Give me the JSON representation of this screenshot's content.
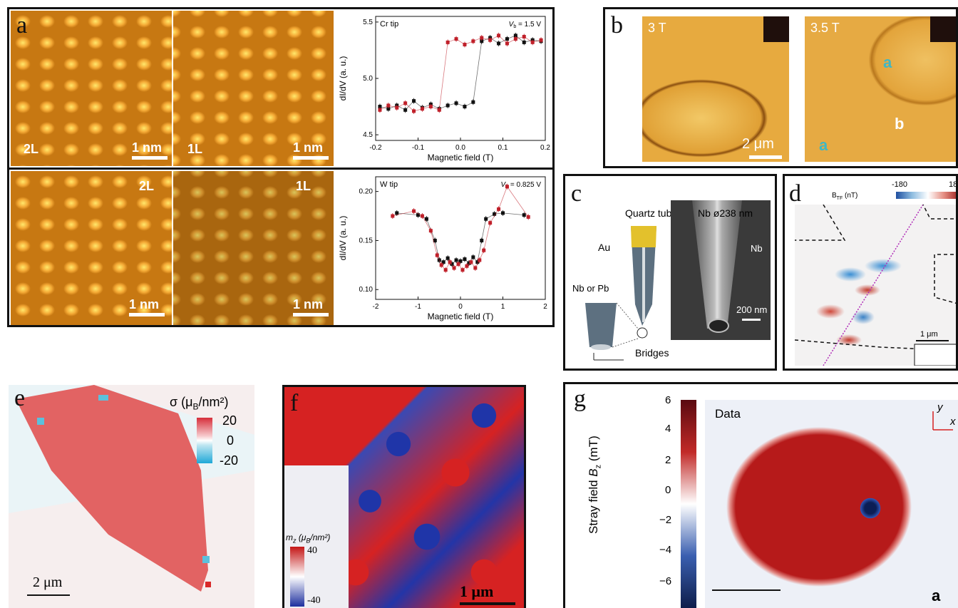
{
  "panels": {
    "a": {
      "label": "a",
      "top_left": {
        "layer": "2L",
        "scale": "1 nm"
      },
      "top_right": {
        "layer": "1L",
        "scale": "1 nm"
      },
      "bottom_left": {
        "layer": "2L",
        "scale": "1 nm"
      },
      "bottom_right": {
        "layer": "1L",
        "scale": "1 nm"
      }
    },
    "b": {
      "label": "b",
      "left_field": "3 T",
      "right_field": "3.5 T",
      "scale": "2 μm",
      "region_a": "a",
      "region_b": "b"
    },
    "c": {
      "label": "c",
      "quartz": "Quartz tube",
      "au": "Au",
      "nb_pb": "Nb or Pb",
      "bridges": "Bridges",
      "nb_dia": "Nb ø238 nm",
      "nb": "Nb",
      "scale": "200 nm"
    },
    "d": {
      "label": "d",
      "cbar_label": "B",
      "cbar_sub": "TF",
      "cbar_unit": "(nT)",
      "cbar_min": "-180",
      "cbar_max": "18",
      "scale": "1 μm"
    },
    "e": {
      "label": "e",
      "cbar_title": "σ (μ",
      "cbar_title_b": "B",
      "cbar_title_c": "/nm²)",
      "ticks": [
        "20",
        "0",
        "-20"
      ],
      "scale": "2 μm"
    },
    "f": {
      "label": "f",
      "cbar_title": "m",
      "cbar_sub": "z",
      "cbar_unit": " (μ",
      "cbar_unit_b": "B",
      "cbar_unit_c": "/nm²)",
      "cbar_max": "40",
      "cbar_min": "-40",
      "scale": "1 μm"
    },
    "g": {
      "label": "g",
      "ylabel": "Stray field ",
      "ylabel_b": "B",
      "ylabel_c": "z",
      "ylabel_d": " (mT)",
      "ticks": [
        "6",
        "4",
        "2",
        "0",
        "−2",
        "−4",
        "−6"
      ],
      "data_label": "Data",
      "corner": "a",
      "axis_y": "y",
      "axis_x": "x"
    }
  },
  "chart_data": [
    {
      "type": "scatter",
      "title": "Cr tip",
      "annotation": "V",
      "annotation_sub": "b",
      "annotation_val": " = 1.5 V",
      "xlabel": "Magnetic field (T)",
      "ylabel": "dI/dV (a. u.)",
      "xlim": [
        -0.2,
        0.2
      ],
      "ylim": [
        4.45,
        5.55
      ],
      "xticks": [
        "-0.2",
        "-0.1",
        "0.0",
        "0.1",
        "0.2"
      ],
      "yticks": [
        "4.5",
        "5.0",
        "5.5"
      ],
      "series": [
        {
          "color": "#111111",
          "x": [
            -0.19,
            -0.17,
            -0.15,
            -0.13,
            -0.11,
            -0.09,
            -0.07,
            -0.05,
            -0.03,
            -0.01,
            0.01,
            0.03,
            0.05,
            0.07,
            0.09,
            0.11,
            0.13,
            0.15,
            0.17,
            0.19
          ],
          "y": [
            4.75,
            4.73,
            4.76,
            4.72,
            4.8,
            4.74,
            4.77,
            4.73,
            4.76,
            4.78,
            4.75,
            4.79,
            5.33,
            5.36,
            5.31,
            5.35,
            5.38,
            5.32,
            5.34,
            5.33
          ]
        },
        {
          "color": "#c0202a",
          "x": [
            -0.19,
            -0.17,
            -0.15,
            -0.13,
            -0.11,
            -0.09,
            -0.07,
            -0.05,
            -0.03,
            -0.01,
            0.01,
            0.03,
            0.05,
            0.07,
            0.09,
            0.11,
            0.13,
            0.15,
            0.17,
            0.19
          ],
          "y": [
            4.72,
            4.76,
            4.74,
            4.78,
            4.71,
            4.73,
            4.75,
            4.72,
            5.32,
            5.35,
            5.3,
            5.33,
            5.36,
            5.34,
            5.38,
            5.31,
            5.35,
            5.37,
            5.32,
            5.34
          ]
        }
      ]
    },
    {
      "type": "scatter",
      "title": "W tip",
      "annotation": "V",
      "annotation_sub": "b",
      "annotation_val": " = 0.825 V",
      "xlabel": "Magnetic field (T)",
      "ylabel": "dI/dV (a. u.)",
      "xlim": [
        -2,
        2
      ],
      "ylim": [
        0.09,
        0.215
      ],
      "xticks": [
        "-2",
        "-1",
        "0",
        "1",
        "2"
      ],
      "yticks": [
        "0.10",
        "0.15",
        "0.20"
      ],
      "series": [
        {
          "color": "#111111",
          "x": [
            -1.5,
            -1.0,
            -0.8,
            -0.6,
            -0.5,
            -0.4,
            -0.3,
            -0.2,
            -0.1,
            0.0,
            0.1,
            0.2,
            0.3,
            0.4,
            0.5,
            0.6,
            0.8,
            1.0,
            1.5
          ],
          "y": [
            0.178,
            0.176,
            0.172,
            0.15,
            0.13,
            0.128,
            0.132,
            0.126,
            0.13,
            0.129,
            0.131,
            0.127,
            0.133,
            0.128,
            0.15,
            0.172,
            0.177,
            0.178,
            0.176
          ]
        },
        {
          "color": "#c0202a",
          "x": [
            -1.6,
            -1.1,
            -0.9,
            -0.7,
            -0.55,
            -0.45,
            -0.35,
            -0.25,
            -0.15,
            -0.05,
            0.05,
            0.15,
            0.25,
            0.35,
            0.45,
            0.55,
            0.7,
            0.9,
            1.1,
            1.6
          ],
          "y": [
            0.175,
            0.18,
            0.175,
            0.16,
            0.135,
            0.125,
            0.12,
            0.128,
            0.122,
            0.126,
            0.12,
            0.124,
            0.128,
            0.122,
            0.13,
            0.14,
            0.168,
            0.182,
            0.205,
            0.174
          ]
        }
      ]
    }
  ]
}
